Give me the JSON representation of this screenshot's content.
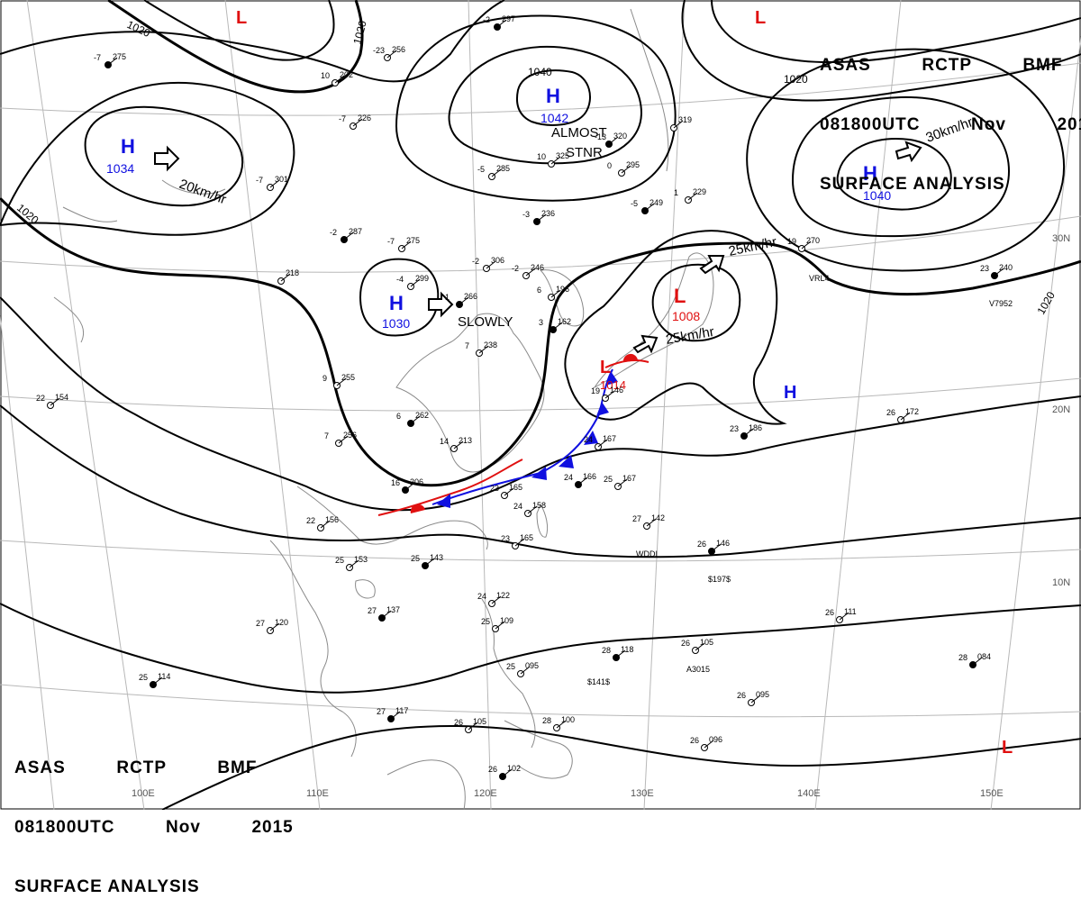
{
  "header": {
    "agency_line": "ASAS RCTP BMF",
    "agency_parts": [
      "ASAS",
      "RCTP",
      "BMF"
    ],
    "time_parts": [
      "081800UTC",
      "Nov",
      "2015"
    ],
    "product": "SURFACE ANALYSIS"
  },
  "colors": {
    "high": "#1010e0",
    "low": "#e01010",
    "isobar": "#000000",
    "grid": "#b8b8b8",
    "coast": "#8a8a8a"
  },
  "latitudes": [
    "30N",
    "20N",
    "10N"
  ],
  "longitudes": [
    "100E",
    "110E",
    "120E",
    "130E",
    "140E",
    "150E"
  ],
  "isobar_labels": [
    "1020",
    "1020",
    "1020",
    "1020",
    "1020",
    "1040"
  ],
  "pressure_centers": [
    {
      "type": "H",
      "value": "1034"
    },
    {
      "type": "H",
      "value": "1042"
    },
    {
      "type": "H",
      "value": "1040"
    },
    {
      "type": "H",
      "value": "1030"
    },
    {
      "type": "H",
      "value": ""
    },
    {
      "type": "L",
      "value": "1008"
    },
    {
      "type": "L",
      "value": "1014"
    },
    {
      "type": "L",
      "value": ""
    },
    {
      "type": "L",
      "value": ""
    },
    {
      "type": "L",
      "value": ""
    }
  ],
  "motion_labels": [
    "20km/hr",
    "30km/hr",
    "25km/hr",
    "25km/hr",
    "SLOWLY",
    "ALMOST",
    "STNR"
  ],
  "stations": [
    {
      "p": "275",
      "t": "-7"
    },
    {
      "p": "202",
      "t": "10"
    },
    {
      "p": "256",
      "t": "-23"
    },
    {
      "p": "297",
      "t": "-2"
    },
    {
      "p": "226",
      "t": "-7"
    },
    {
      "p": "301",
      "t": "-7"
    },
    {
      "p": "287",
      "t": "-2"
    },
    {
      "p": "275",
      "t": "-7"
    },
    {
      "p": "299",
      "t": "-4"
    },
    {
      "p": "266",
      "t": "1"
    },
    {
      "p": "306",
      "t": "-2"
    },
    {
      "p": "246",
      "t": "-2"
    },
    {
      "p": "236",
      "t": "-3"
    },
    {
      "p": "285",
      "t": "-5"
    },
    {
      "p": "325",
      "t": "10"
    },
    {
      "p": "320",
      "t": "-13"
    },
    {
      "p": "295",
      "t": "0"
    },
    {
      "p": "319",
      "t": ""
    },
    {
      "p": "249",
      "t": "-5"
    },
    {
      "p": "229",
      "t": "1"
    },
    {
      "p": "270",
      "t": "19"
    },
    {
      "p": "240",
      "t": "23"
    },
    {
      "p": "218",
      "t": ""
    },
    {
      "p": "255",
      "t": "9"
    },
    {
      "p": "262",
      "t": "6"
    },
    {
      "p": "256",
      "t": "7"
    },
    {
      "p": "213",
      "t": "14"
    },
    {
      "p": "206",
      "t": "16"
    },
    {
      "p": "165",
      "t": "23"
    },
    {
      "p": "158",
      "t": "24"
    },
    {
      "p": "166",
      "t": "24"
    },
    {
      "p": "167",
      "t": "25"
    },
    {
      "p": "167",
      "t": "24"
    },
    {
      "p": "186",
      "t": "23"
    },
    {
      "p": "172",
      "t": "26"
    },
    {
      "p": "142",
      "t": "27"
    },
    {
      "p": "146",
      "t": "26"
    },
    {
      "p": "156",
      "t": "22"
    },
    {
      "p": "153",
      "t": "25"
    },
    {
      "p": "143",
      "t": "25"
    },
    {
      "p": "165",
      "t": "23"
    },
    {
      "p": "120",
      "t": "27"
    },
    {
      "p": "137",
      "t": "27"
    },
    {
      "p": "122",
      "t": "24"
    },
    {
      "p": "109",
      "t": "25"
    },
    {
      "p": "118",
      "t": "28"
    },
    {
      "p": "105",
      "t": "26"
    },
    {
      "p": "111",
      "t": "26"
    },
    {
      "p": "084",
      "t": "28"
    },
    {
      "p": "095",
      "t": "26"
    },
    {
      "p": "096",
      "t": "26"
    },
    {
      "p": "117",
      "t": "27"
    },
    {
      "p": "105",
      "t": "26"
    },
    {
      "p": "100",
      "t": "28"
    },
    {
      "p": "102",
      "t": "26"
    },
    {
      "p": "095",
      "t": "25"
    },
    {
      "p": "154",
      "t": "22"
    },
    {
      "p": "114",
      "t": "25"
    },
    {
      "p": "238",
      "t": "7"
    },
    {
      "p": "196",
      "t": "6"
    },
    {
      "p": "162",
      "t": "3"
    },
    {
      "p": "146",
      "t": "19"
    }
  ],
  "ship_ids": [
    "WDDI",
    "$197$",
    "A3015",
    "$141$",
    "VRL4",
    "V7952"
  ]
}
